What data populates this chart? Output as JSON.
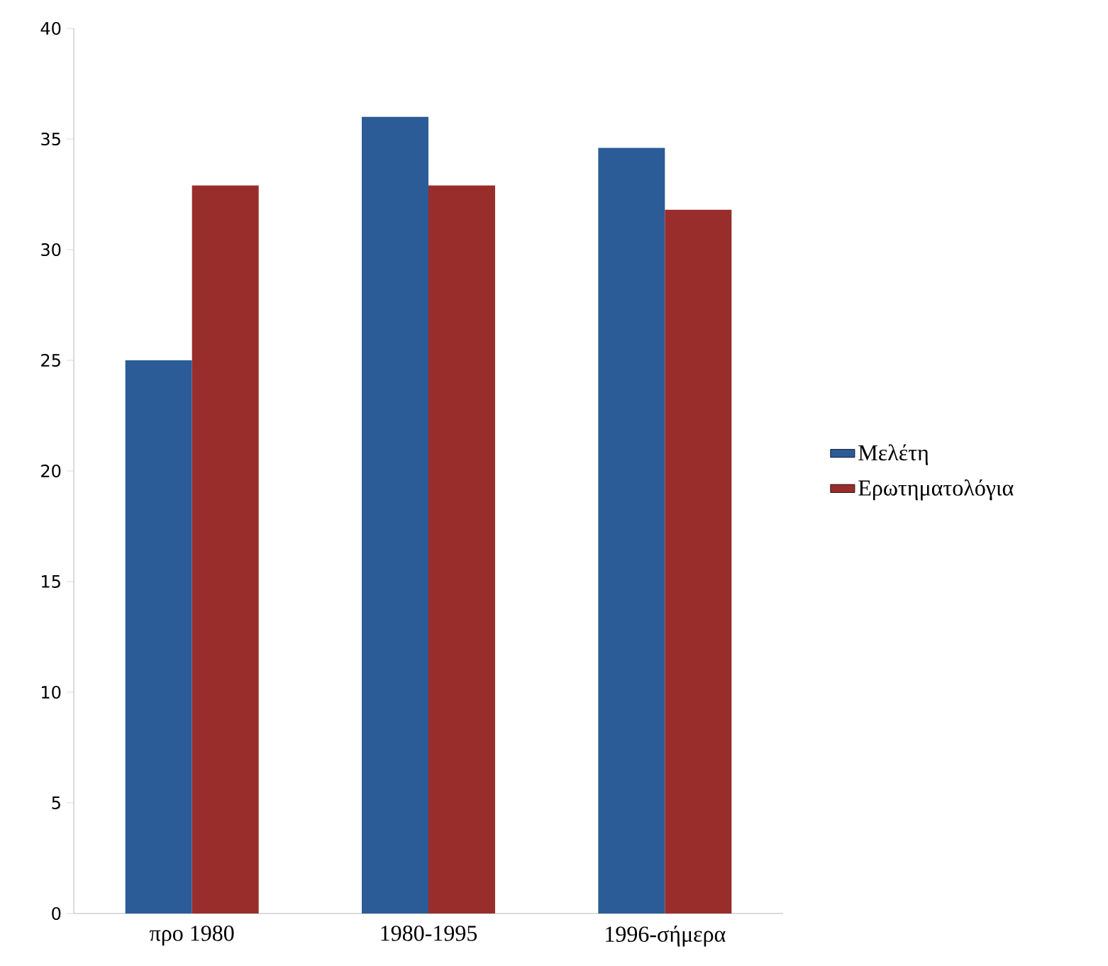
{
  "chart_data": {
    "type": "bar",
    "categories": [
      "προ 1980",
      "1980-1995",
      "1996-σήμερα"
    ],
    "series": [
      {
        "name": "Μελέτη",
        "color": "#2b5c97",
        "values": [
          25,
          36,
          34.6
        ]
      },
      {
        "name": "Ερωτηματολόγια",
        "color": "#992d2b",
        "values": [
          32.9,
          32.9,
          31.8
        ]
      }
    ],
    "ylim": [
      0,
      40
    ],
    "yticks": [
      0,
      5,
      10,
      15,
      20,
      25,
      30,
      35,
      40
    ],
    "grid": false,
    "legend": "right"
  }
}
